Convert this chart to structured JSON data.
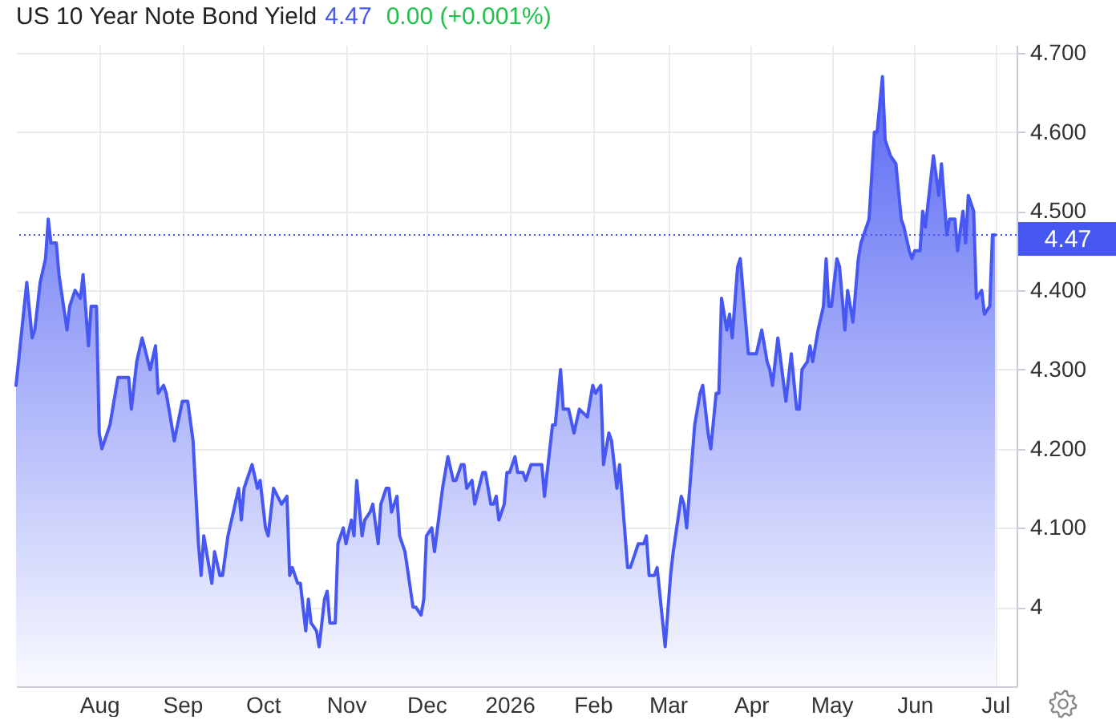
{
  "chart_data": {
    "type": "area",
    "title": "US 10 Year Note Bond Yield",
    "annotations": [
      "4.47",
      "0.00 (+0.001%)"
    ],
    "x": [
      "2025-07-01",
      "2025-07-05",
      "2025-07-07",
      "2025-07-08",
      "2025-07-10",
      "2025-07-12",
      "2025-07-13",
      "2025-07-14",
      "2025-07-16",
      "2025-07-17",
      "2025-07-20",
      "2025-07-21",
      "2025-07-23",
      "2025-07-25",
      "2025-07-26",
      "2025-07-28",
      "2025-07-29",
      "2025-07-31",
      "2025-08-01",
      "2025-08-02",
      "2025-08-05",
      "2025-08-08",
      "2025-08-12",
      "2025-08-13",
      "2025-08-15",
      "2025-08-17",
      "2025-08-20",
      "2025-08-22",
      "2025-08-23",
      "2025-08-25",
      "2025-08-26",
      "2025-08-29",
      "2025-09-01",
      "2025-09-03",
      "2025-09-05",
      "2025-09-07",
      "2025-09-08",
      "2025-09-09",
      "2025-09-12",
      "2025-09-13",
      "2025-09-15",
      "2025-09-16",
      "2025-09-18",
      "2025-09-22",
      "2025-09-23",
      "2025-09-24",
      "2025-09-27",
      "2025-09-29",
      "2025-09-30",
      "2025-10-02",
      "2025-10-03",
      "2025-10-05",
      "2025-10-08",
      "2025-10-10",
      "2025-10-11",
      "2025-10-12",
      "2025-10-14",
      "2025-10-15",
      "2025-10-17",
      "2025-10-18",
      "2025-10-19",
      "2025-10-21",
      "2025-10-22",
      "2025-10-24",
      "2025-10-25",
      "2025-10-26",
      "2025-10-28",
      "2025-10-29",
      "2025-10-31",
      "2025-11-01",
      "2025-11-03",
      "2025-11-04",
      "2025-11-05",
      "2025-11-07",
      "2025-11-08",
      "2025-11-10",
      "2025-11-11",
      "2025-11-13",
      "2025-11-14",
      "2025-11-16",
      "2025-11-17",
      "2025-11-18",
      "2025-11-20",
      "2025-11-21",
      "2025-11-23",
      "2025-11-26",
      "2025-11-27",
      "2025-11-29",
      "2025-11-30",
      "2025-12-01",
      "2025-12-03",
      "2025-12-04",
      "2025-12-07",
      "2025-12-09",
      "2025-12-11",
      "2025-12-12",
      "2025-12-14",
      "2025-12-15",
      "2025-12-16",
      "2025-12-18",
      "2025-12-19",
      "2025-12-22",
      "2025-12-23",
      "2025-12-25",
      "2025-12-26",
      "2025-12-27",
      "2025-12-28",
      "2025-12-30",
      "2025-12-31",
      "2026-01-01",
      "2026-01-03",
      "2026-01-04",
      "2026-01-06",
      "2026-01-07",
      "2026-01-09",
      "2026-01-10",
      "2026-01-11",
      "2026-01-13",
      "2026-01-14",
      "2026-01-17",
      "2026-01-18",
      "2026-01-20",
      "2026-01-21",
      "2026-01-23",
      "2026-01-25",
      "2026-01-27",
      "2026-01-30",
      "2026-02-01",
      "2026-02-02",
      "2026-02-04",
      "2026-02-05",
      "2026-02-07",
      "2026-02-08",
      "2026-02-10",
      "2026-02-11",
      "2026-02-14",
      "2026-02-15",
      "2026-02-18",
      "2026-02-20",
      "2026-02-21",
      "2026-02-22",
      "2026-02-24",
      "2026-02-25",
      "2026-02-28",
      "2026-03-02",
      "2026-03-03",
      "2026-03-06",
      "2026-03-07",
      "2026-03-08",
      "2026-03-11",
      "2026-03-13",
      "2026-03-14",
      "2026-03-16",
      "2026-03-17",
      "2026-03-19",
      "2026-03-20",
      "2026-03-21",
      "2026-03-23",
      "2026-03-24",
      "2026-03-25",
      "2026-03-27",
      "2026-03-28",
      "2026-03-30",
      "2026-03-31",
      "2026-04-02",
      "2026-04-03",
      "2026-04-05",
      "2026-04-07",
      "2026-04-08",
      "2026-04-09",
      "2026-04-11",
      "2026-04-14",
      "2026-04-16",
      "2026-04-18",
      "2026-04-19",
      "2026-04-20",
      "2026-04-22",
      "2026-04-23",
      "2026-04-24",
      "2026-04-26",
      "2026-04-28",
      "2026-04-29",
      "2026-04-30",
      "2026-05-01",
      "2026-05-03",
      "2026-05-04",
      "2026-05-06",
      "2026-05-07",
      "2026-05-09",
      "2026-05-11",
      "2026-05-12",
      "2026-05-15",
      "2026-05-17",
      "2026-05-18",
      "2026-05-20",
      "2026-05-21",
      "2026-05-23",
      "2026-05-25",
      "2026-05-27",
      "2026-05-28",
      "2026-05-30",
      "2026-05-31",
      "2026-06-01",
      "2026-06-03",
      "2026-06-04",
      "2026-06-05",
      "2026-06-08",
      "2026-06-10",
      "2026-06-11",
      "2026-06-13",
      "2026-06-14",
      "2026-06-16",
      "2026-06-17",
      "2026-06-19",
      "2026-06-20",
      "2026-06-21",
      "2026-06-23",
      "2026-06-24",
      "2026-06-26",
      "2026-06-27",
      "2026-06-29",
      "2026-06-30",
      "2026-07-01"
    ],
    "series": [
      {
        "color": "#4657f2",
        "values": [
          4.28,
          4.41,
          4.34,
          4.35,
          4.41,
          4.44,
          4.49,
          4.46,
          4.46,
          4.42,
          4.35,
          4.38,
          4.4,
          4.39,
          4.42,
          4.33,
          4.38,
          4.38,
          4.22,
          4.2,
          4.23,
          4.29,
          4.29,
          4.25,
          4.31,
          4.34,
          4.3,
          4.33,
          4.27,
          4.28,
          4.27,
          4.21,
          4.26,
          4.26,
          4.21,
          4.08,
          4.04,
          4.09,
          4.03,
          4.07,
          4.04,
          4.04,
          4.09,
          4.15,
          4.11,
          4.15,
          4.18,
          4.15,
          4.16,
          4.1,
          4.09,
          4.15,
          4.13,
          4.14,
          4.04,
          4.05,
          4.03,
          4.03,
          3.97,
          4.01,
          3.98,
          3.97,
          3.95,
          4.01,
          4.02,
          3.98,
          3.98,
          4.08,
          4.1,
          4.08,
          4.11,
          4.09,
          4.16,
          4.09,
          4.11,
          4.12,
          4.13,
          4.08,
          4.13,
          4.15,
          4.15,
          4.12,
          4.14,
          4.09,
          4.07,
          4.0,
          4.0,
          3.99,
          4.01,
          4.09,
          4.1,
          4.07,
          4.15,
          4.19,
          4.16,
          4.16,
          4.18,
          4.18,
          4.15,
          4.16,
          4.13,
          4.17,
          4.17,
          4.13,
          4.13,
          4.14,
          4.11,
          4.13,
          4.17,
          4.17,
          4.19,
          4.17,
          4.17,
          4.16,
          4.18,
          4.18,
          4.18,
          4.18,
          4.14,
          4.23,
          4.23,
          4.3,
          4.25,
          4.25,
          4.22,
          4.25,
          4.24,
          4.28,
          4.27,
          4.28,
          4.18,
          4.22,
          4.21,
          4.15,
          4.18,
          4.05,
          4.05,
          4.08,
          4.08,
          4.09,
          4.04,
          4.04,
          4.05,
          3.95,
          4.04,
          4.07,
          4.14,
          4.13,
          4.1,
          4.23,
          4.27,
          4.28,
          4.22,
          4.2,
          4.27,
          4.27,
          4.39,
          4.35,
          4.37,
          4.34,
          4.43,
          4.44,
          4.36,
          4.32,
          4.32,
          4.32,
          4.35,
          4.31,
          4.3,
          4.28,
          4.34,
          4.26,
          4.32,
          4.25,
          4.25,
          4.3,
          4.31,
          4.33,
          4.31,
          4.35,
          4.38,
          4.44,
          4.38,
          4.38,
          4.44,
          4.43,
          4.35,
          4.4,
          4.36,
          4.44,
          4.46,
          4.49,
          4.6,
          4.6,
          4.67,
          4.59,
          4.57,
          4.56,
          4.49,
          4.48,
          4.45,
          4.44,
          4.45,
          4.45,
          4.5,
          4.48,
          4.57,
          4.52,
          4.56,
          4.47,
          4.49,
          4.49,
          4.45,
          4.5,
          4.46,
          4.52,
          4.5,
          4.39,
          4.4,
          4.37,
          4.38,
          4.47,
          4.47
        ]
      }
    ],
    "xlim": [
      "2025-07-01",
      "2026-07-09"
    ],
    "xticks": [
      {
        "value": "2025-08-01",
        "label": "Aug"
      },
      {
        "value": "2025-09-01",
        "label": "Sep"
      },
      {
        "value": "2025-10-01",
        "label": "Oct"
      },
      {
        "value": "2025-11-01",
        "label": "Nov"
      },
      {
        "value": "2025-12-01",
        "label": "Dec"
      },
      {
        "value": "2026-01-01",
        "label": "2026"
      },
      {
        "value": "2026-02-01",
        "label": "Feb"
      },
      {
        "value": "2026-03-01",
        "label": "Mar"
      },
      {
        "value": "2026-04-01",
        "label": "Apr"
      },
      {
        "value": "2026-05-01",
        "label": "May"
      },
      {
        "value": "2026-06-01",
        "label": "Jun"
      },
      {
        "value": "2026-07-01",
        "label": "Jul"
      }
    ],
    "ylim": [
      3.9,
      4.71
    ],
    "yticks": [
      4,
      {
        "value": 4.1,
        "label": "4.100"
      },
      {
        "value": 4.2,
        "label": "4.200"
      },
      {
        "value": 4.3,
        "label": "4.300"
      },
      {
        "value": 4.4,
        "label": "4.400"
      },
      {
        "value": 4.5,
        "label": "4.500"
      },
      {
        "value": 4.6,
        "label": "4.600"
      },
      {
        "value": 4.7,
        "label": "4.700"
      }
    ],
    "grid": true,
    "ref_lines": [
      {
        "axis": "y",
        "value": 4.47,
        "label": "4.47",
        "color": "#4657f2",
        "line_style": "dotted"
      }
    ]
  }
}
